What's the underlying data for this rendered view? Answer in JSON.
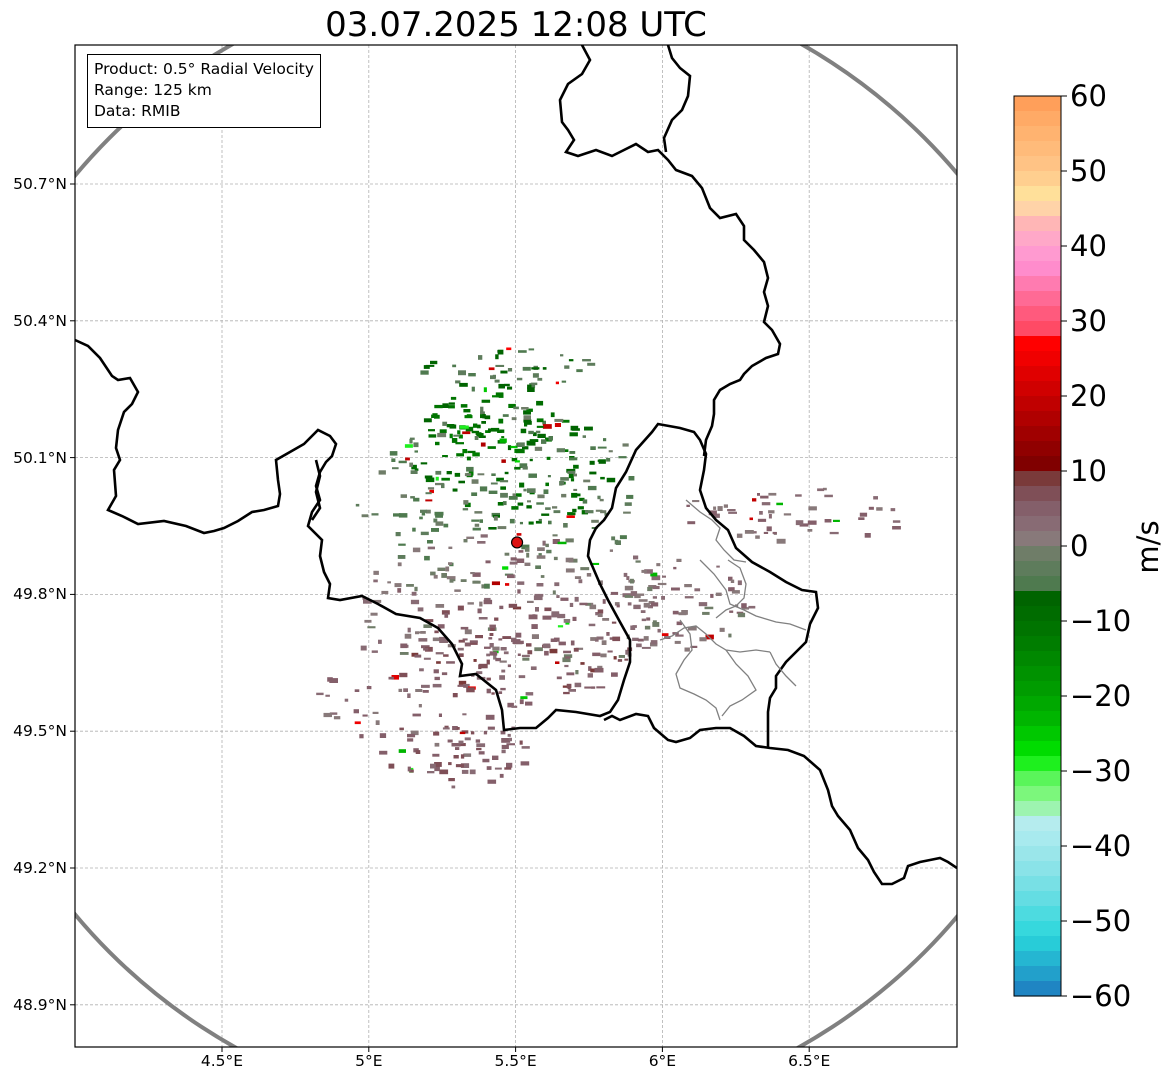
{
  "title": "03.07.2025 12:08 UTC",
  "info": {
    "product": "Product: 0.5° Radial Velocity",
    "range": "Range: 125 km",
    "source": "Data: RMIB"
  },
  "axes": {
    "lat_ticks": [
      {
        "value": 50.7,
        "label": "50.7°N"
      },
      {
        "value": 50.4,
        "label": "50.4°N"
      },
      {
        "value": 50.1,
        "label": "50.1°N"
      },
      {
        "value": 49.8,
        "label": "49.8°N"
      },
      {
        "value": 49.5,
        "label": "49.5°N"
      },
      {
        "value": 49.2,
        "label": "49.2°N"
      },
      {
        "value": 48.9,
        "label": "48.9°N"
      }
    ],
    "lon_ticks": [
      {
        "value": 4.5,
        "label": "4.5°E"
      },
      {
        "value": 5.0,
        "label": "5°E"
      },
      {
        "value": 5.5,
        "label": "5.5°E"
      },
      {
        "value": 6.0,
        "label": "6°E"
      },
      {
        "value": 6.5,
        "label": "6.5°E"
      }
    ],
    "lon_range": [
      4.0,
      7.0
    ],
    "lat_range": [
      48.8,
      51.0
    ]
  },
  "radar_site": {
    "lon": 5.505,
    "lat": 49.914
  },
  "colorbar": {
    "unit": "m/s",
    "min": -60,
    "max": 60,
    "ticks": [
      {
        "value": 60,
        "label": "60"
      },
      {
        "value": 50,
        "label": "50"
      },
      {
        "value": 40,
        "label": "40"
      },
      {
        "value": 30,
        "label": "30"
      },
      {
        "value": 20,
        "label": "20"
      },
      {
        "value": 10,
        "label": "10"
      },
      {
        "value": 0,
        "label": "0"
      },
      {
        "value": -10,
        "label": "−10"
      },
      {
        "value": -20,
        "label": "−20"
      },
      {
        "value": -30,
        "label": "−30"
      },
      {
        "value": -40,
        "label": "−40"
      },
      {
        "value": -50,
        "label": "−50"
      },
      {
        "value": -60,
        "label": "−60"
      }
    ],
    "bands": [
      {
        "from": 58,
        "to": 60,
        "color": "#ff9f5a"
      },
      {
        "from": 56,
        "to": 58,
        "color": "#ffaa66"
      },
      {
        "from": 54,
        "to": 56,
        "color": "#ffb370"
      },
      {
        "from": 52,
        "to": 54,
        "color": "#ffbb7a"
      },
      {
        "from": 50,
        "to": 52,
        "color": "#ffc385"
      },
      {
        "from": 48,
        "to": 50,
        "color": "#ffcf8f"
      },
      {
        "from": 46,
        "to": 48,
        "color": "#ffe09a"
      },
      {
        "from": 44,
        "to": 46,
        "color": "#ffd3a8"
      },
      {
        "from": 42,
        "to": 44,
        "color": "#ffb6b6"
      },
      {
        "from": 40,
        "to": 42,
        "color": "#ffa8c8"
      },
      {
        "from": 38,
        "to": 40,
        "color": "#ff9ad0"
      },
      {
        "from": 36,
        "to": 38,
        "color": "#ff8ccc"
      },
      {
        "from": 34,
        "to": 36,
        "color": "#ff7bb0"
      },
      {
        "from": 32,
        "to": 34,
        "color": "#ff6a95"
      },
      {
        "from": 30,
        "to": 32,
        "color": "#ff5a7d"
      },
      {
        "from": 28,
        "to": 30,
        "color": "#ff4a65"
      },
      {
        "from": 26,
        "to": 28,
        "color": "#ff0000"
      },
      {
        "from": 24,
        "to": 26,
        "color": "#f00000"
      },
      {
        "from": 22,
        "to": 24,
        "color": "#e00000"
      },
      {
        "from": 20,
        "to": 22,
        "color": "#d00000"
      },
      {
        "from": 18,
        "to": 20,
        "color": "#c00000"
      },
      {
        "from": 16,
        "to": 18,
        "color": "#b00000"
      },
      {
        "from": 14,
        "to": 16,
        "color": "#a00000"
      },
      {
        "from": 12,
        "to": 14,
        "color": "#900000"
      },
      {
        "from": 10,
        "to": 12,
        "color": "#800000"
      },
      {
        "from": 8,
        "to": 10,
        "color": "#7a3a3a"
      },
      {
        "from": 6,
        "to": 8,
        "color": "#7f4f57"
      },
      {
        "from": 4,
        "to": 6,
        "color": "#845f6a"
      },
      {
        "from": 2,
        "to": 4,
        "color": "#886b74"
      },
      {
        "from": 0,
        "to": 2,
        "color": "#88797a"
      },
      {
        "from": -2,
        "to": 0,
        "color": "#6f7d68"
      },
      {
        "from": -4,
        "to": -2,
        "color": "#5e7c5c"
      },
      {
        "from": -6,
        "to": -4,
        "color": "#4f7a4f"
      },
      {
        "from": -8,
        "to": -6,
        "color": "#006400"
      },
      {
        "from": -10,
        "to": -8,
        "color": "#006c00"
      },
      {
        "from": -12,
        "to": -10,
        "color": "#007400"
      },
      {
        "from": -14,
        "to": -12,
        "color": "#007d00"
      },
      {
        "from": -16,
        "to": -14,
        "color": "#008800"
      },
      {
        "from": -18,
        "to": -16,
        "color": "#009200"
      },
      {
        "from": -20,
        "to": -18,
        "color": "#009c00"
      },
      {
        "from": -22,
        "to": -20,
        "color": "#00a800"
      },
      {
        "from": -24,
        "to": -22,
        "color": "#00b500"
      },
      {
        "from": -26,
        "to": -24,
        "color": "#00c800"
      },
      {
        "from": -28,
        "to": -26,
        "color": "#00dc00"
      },
      {
        "from": -30,
        "to": -28,
        "color": "#1ef01e"
      },
      {
        "from": -32,
        "to": -30,
        "color": "#5af55a"
      },
      {
        "from": -34,
        "to": -32,
        "color": "#7cf77c"
      },
      {
        "from": -36,
        "to": -34,
        "color": "#9df4b0"
      },
      {
        "from": -38,
        "to": -36,
        "color": "#b5ecee"
      },
      {
        "from": -40,
        "to": -38,
        "color": "#a8eaee"
      },
      {
        "from": -42,
        "to": -40,
        "color": "#9ae6ea"
      },
      {
        "from": -44,
        "to": -42,
        "color": "#8ae3e8"
      },
      {
        "from": -46,
        "to": -44,
        "color": "#78e0e5"
      },
      {
        "from": -48,
        "to": -46,
        "color": "#64dde3"
      },
      {
        "from": -50,
        "to": -48,
        "color": "#4ddbe0"
      },
      {
        "from": -52,
        "to": -50,
        "color": "#36d8dd"
      },
      {
        "from": -54,
        "to": -52,
        "color": "#28ccd8"
      },
      {
        "from": -56,
        "to": -54,
        "color": "#25b6d2"
      },
      {
        "from": -58,
        "to": -56,
        "color": "#22a0cb"
      },
      {
        "from": -60,
        "to": -58,
        "color": "#1f85c3"
      }
    ]
  },
  "colors": {
    "border": "#000000",
    "subborder": "#808080",
    "range_ring": "#808080",
    "radar_marker": "#dd1111",
    "gridline": "#b0b0b0"
  },
  "echo_regions": [
    {
      "lon": 5.48,
      "lat": 50.08,
      "rlon": 0.34,
      "rlat": 0.15,
      "velocity": -8,
      "density": 0.75
    },
    {
      "lon": 5.38,
      "lat": 50.15,
      "rlon": 0.22,
      "rlat": 0.1,
      "velocity": -10,
      "density": 0.55
    },
    {
      "lon": 5.45,
      "lat": 50.02,
      "rlon": 0.5,
      "rlat": 0.2,
      "velocity": -3,
      "density": 0.7
    },
    {
      "lon": 5.5,
      "lat": 49.78,
      "rlon": 0.55,
      "rlat": 0.16,
      "velocity": 2,
      "density": 0.85
    },
    {
      "lon": 5.52,
      "lat": 49.68,
      "rlon": 0.4,
      "rlat": 0.12,
      "velocity": 6,
      "density": 0.8
    },
    {
      "lon": 5.2,
      "lat": 49.58,
      "rlon": 0.38,
      "rlat": 0.14,
      "velocity": 4,
      "density": 0.5
    },
    {
      "lon": 5.3,
      "lat": 49.45,
      "rlon": 0.25,
      "rlat": 0.07,
      "velocity": 5,
      "density": 0.35
    },
    {
      "lon": 6.05,
      "lat": 49.78,
      "rlon": 0.25,
      "rlat": 0.1,
      "velocity": 2,
      "density": 0.6
    },
    {
      "lon": 6.45,
      "lat": 49.98,
      "rlon": 0.4,
      "rlat": 0.06,
      "velocity": 3,
      "density": 0.3
    },
    {
      "lon": 5.45,
      "lat": 50.3,
      "rlon": 0.3,
      "rlat": 0.05,
      "velocity": -5,
      "density": 0.3
    }
  ]
}
